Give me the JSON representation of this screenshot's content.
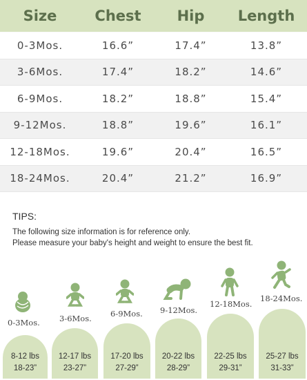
{
  "table": {
    "headers": [
      "Size",
      "Chest",
      "Hip",
      "Length"
    ],
    "rows": [
      [
        "0-3Mos.",
        "16.6”",
        "17.4”",
        "13.8”"
      ],
      [
        "3-6Mos.",
        "17.4”",
        "18.2”",
        "14.6”"
      ],
      [
        "6-9Mos.",
        "18.2”",
        "18.8”",
        "15.4”"
      ],
      [
        "9-12Mos.",
        "18.8”",
        "19.6”",
        "16.1”"
      ],
      [
        "12-18Mos.",
        "19.6”",
        "20.4”",
        "16.5”"
      ],
      [
        "18-24Mos.",
        "20.4”",
        "21.2”",
        "16.9”"
      ]
    ]
  },
  "tips": {
    "title": "TIPS:",
    "line1": "The following size information is for reference only.",
    "line2": "Please measure your baby's height and weight to ensure the best fit."
  },
  "stages": [
    {
      "label": "0-3Mos.",
      "weight": "8-12 lbs",
      "height": "18-23”",
      "icon": "swaddled-baby-icon"
    },
    {
      "label": "3-6Mos.",
      "weight": "12-17 lbs",
      "height": "23-27”",
      "icon": "sitting-baby-icon"
    },
    {
      "label": "6-9Mos.",
      "weight": "17-20 lbs",
      "height": "27-29”",
      "icon": "sitting-baby-icon"
    },
    {
      "label": "9-12Mos.",
      "weight": "20-22 lbs",
      "height": "28-29”",
      "icon": "crawling-baby-icon"
    },
    {
      "label": "12-18Mos.",
      "weight": "22-25 lbs",
      "height": "29-31”",
      "icon": "standing-toddler-icon"
    },
    {
      "label": "18-24Mos.",
      "weight": "25-27 lbs",
      "height": "31-33”",
      "icon": "walking-toddler-icon"
    }
  ],
  "colors": {
    "accent": "#d7e3bf",
    "icon": "#8fb477",
    "header_text": "#5c6f4c"
  }
}
